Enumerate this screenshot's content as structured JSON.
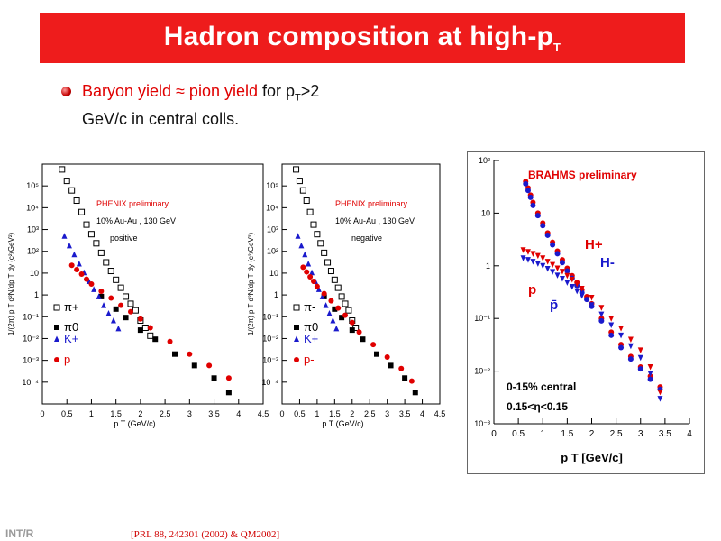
{
  "slide": {
    "title_main": "Hadron composition at high-p",
    "title_sub": "T",
    "bullet": {
      "red_part": "Baryon yield ≈ pion yield",
      "for_pre": " for p",
      "for_sub": "T",
      "for_post": ">2",
      "line2": "GeV/c in central colls."
    },
    "footer_left": "INT/R",
    "footer_ref": "[PRL 88, 242301 (2002) & QM2002]"
  },
  "chart_data": [
    {
      "type": "scatter",
      "id": "phenix-positive",
      "ylabel": "1/(2π) p T d²N/dp T dy (c²/GeV²)",
      "xlabel": "p T (GeV/c)",
      "yscale": "log",
      "xlim": [
        0,
        4.5
      ],
      "ylim": [
        0.0001,
        1000000
      ],
      "xticks": [
        0,
        0.5,
        1,
        1.5,
        2,
        2.5,
        3,
        3.5,
        4,
        4.5
      ],
      "xtick_labels": [
        "0",
        "0.5",
        "1",
        "1.5",
        "2",
        "2.5",
        "3",
        "3.5",
        "4",
        "4.5"
      ],
      "ytick_labels": [
        "10⁵",
        "10⁴",
        "10³",
        "10²",
        "10",
        "1",
        "10⁻¹",
        "10⁻²",
        "10⁻³",
        "10⁻⁴"
      ],
      "annotations": [
        "PHENIX preliminary",
        "10% Au-Au , 130 GeV",
        "positive"
      ],
      "legend": [
        "π+",
        "π0",
        "K+",
        "p"
      ],
      "series": [
        {
          "name": "π+",
          "marker": "open-square",
          "color": "#000000",
          "x": [
            0.3,
            0.4,
            0.5,
            0.6,
            0.7,
            0.8,
            0.9,
            1.0,
            1.1,
            1.2,
            1.3,
            1.4,
            1.5,
            1.6,
            1.7,
            1.8,
            1.9,
            2.0,
            2.1,
            2.2
          ],
          "y": [
            2000000,
            600000,
            200000,
            80000,
            30000,
            10000,
            3000,
            1200,
            500,
            200,
            80,
            35,
            15,
            7,
            3,
            1.5,
            0.8,
            0.3,
            0.15,
            0.07
          ]
        },
        {
          "name": "π0",
          "marker": "filled-square",
          "color": "#000000",
          "x": [
            1.2,
            1.5,
            1.7,
            2.0,
            2.3,
            2.7,
            3.1,
            3.5,
            3.8
          ],
          "y": [
            3,
            0.9,
            0.4,
            0.12,
            0.05,
            0.012,
            0.004,
            0.0012,
            0.0003
          ]
        },
        {
          "name": "K+",
          "marker": "filled-triangle",
          "color": "#1a1acc",
          "x": [
            0.45,
            0.55,
            0.65,
            0.75,
            0.85,
            0.95,
            1.05,
            1.15,
            1.25,
            1.35,
            1.45,
            1.55
          ],
          "y": [
            1000,
            400,
            170,
            70,
            30,
            13,
            6,
            3,
            1.3,
            0.6,
            0.3,
            0.14
          ]
        },
        {
          "name": "p",
          "marker": "filled-circle",
          "color": "#e00000",
          "x": [
            0.6,
            0.7,
            0.8,
            0.9,
            1.0,
            1.2,
            1.4,
            1.6,
            1.8,
            2.0,
            2.2,
            2.6,
            3.0,
            3.4,
            3.8
          ],
          "y": [
            60,
            40,
            26,
            16,
            10,
            5,
            2.6,
            1.3,
            0.7,
            0.35,
            0.15,
            0.04,
            0.012,
            0.004,
            0.0012
          ]
        }
      ]
    },
    {
      "type": "scatter",
      "id": "phenix-negative",
      "ylabel": "1/(2π) p T d²N/dp T dy (c²/GeV²)",
      "xlabel": "p T (GeV/c)",
      "yscale": "log",
      "xlim": [
        0,
        4.5
      ],
      "ylim": [
        0.0001,
        1000000
      ],
      "xticks": [
        0,
        0.5,
        1,
        1.5,
        2,
        2.5,
        3,
        3.5,
        4,
        4.5
      ],
      "xtick_labels": [
        "0",
        "0.5",
        "1",
        "1.5",
        "2",
        "2.5",
        "3",
        "3.5",
        "4",
        "4.5"
      ],
      "ytick_labels": [
        "10⁵",
        "10⁴",
        "10³",
        "10²",
        "10",
        "1",
        "10⁻¹",
        "10⁻²",
        "10⁻³",
        "10⁻⁴"
      ],
      "annotations": [
        "PHENIX preliminary",
        "10% Au-Au , 130 GeV",
        "negative"
      ],
      "legend": [
        "π-",
        "π0",
        "K+",
        "p-"
      ],
      "series": [
        {
          "name": "π-",
          "marker": "open-square",
          "color": "#000000",
          "x": [
            0.3,
            0.4,
            0.5,
            0.6,
            0.7,
            0.8,
            0.9,
            1.0,
            1.1,
            1.2,
            1.3,
            1.4,
            1.5,
            1.6,
            1.7,
            1.8,
            1.9,
            2.0,
            2.1
          ],
          "y": [
            2000000,
            600000,
            200000,
            80000,
            30000,
            10000,
            3000,
            1200,
            500,
            200,
            80,
            35,
            15,
            7,
            3,
            1.5,
            0.8,
            0.3,
            0.15
          ]
        },
        {
          "name": "π0",
          "marker": "filled-square",
          "color": "#000000",
          "x": [
            1.2,
            1.5,
            1.7,
            2.0,
            2.3,
            2.7,
            3.1,
            3.5,
            3.8
          ],
          "y": [
            3,
            0.9,
            0.4,
            0.12,
            0.05,
            0.012,
            0.004,
            0.0012,
            0.0003
          ]
        },
        {
          "name": "K+",
          "marker": "filled-triangle",
          "color": "#1a1acc",
          "x": [
            0.45,
            0.55,
            0.65,
            0.75,
            0.85,
            0.95,
            1.05,
            1.15,
            1.25,
            1.35,
            1.45,
            1.55
          ],
          "y": [
            1000,
            400,
            170,
            70,
            30,
            13,
            6,
            3,
            1.3,
            0.6,
            0.3,
            0.14
          ]
        },
        {
          "name": "p-",
          "marker": "filled-circle",
          "color": "#e00000",
          "x": [
            0.6,
            0.7,
            0.8,
            0.9,
            1.0,
            1.2,
            1.4,
            1.6,
            1.8,
            2.0,
            2.2,
            2.6,
            3.0,
            3.4,
            3.7
          ],
          "y": [
            50,
            32,
            20,
            13,
            8,
            4,
            2,
            1,
            0.5,
            0.25,
            0.1,
            0.03,
            0.009,
            0.003,
            0.0009
          ]
        }
      ]
    },
    {
      "type": "scatter",
      "id": "brahms",
      "xlabel": "p T [GeV/c]",
      "yscale": "log",
      "xlim": [
        0,
        4
      ],
      "ylim": [
        0.001,
        100
      ],
      "xticks": [
        0,
        0.5,
        1,
        1.5,
        2,
        2.5,
        3,
        3.5,
        4
      ],
      "xtick_labels": [
        "0",
        "0.5",
        "1",
        "1.5",
        "2",
        "2.5",
        "3",
        "3.5",
        "4"
      ],
      "ytick_labels": [
        "10²",
        "10",
        "1",
        "10⁻¹",
        "10⁻²",
        "10⁻³"
      ],
      "annotations": [
        "BRAHMS preliminary",
        "0-15% central",
        "0.15<η<0.15",
        "H+",
        "H-",
        "p",
        "p̄"
      ],
      "series": [
        {
          "name": "H+",
          "marker": "filled-circle",
          "color": "#e00000",
          "x": [
            0.65,
            0.7,
            0.75,
            0.8,
            0.9,
            1.0,
            1.1,
            1.2,
            1.3,
            1.4,
            1.5,
            1.6,
            1.7,
            1.8,
            1.9,
            2.0,
            2.2,
            2.4,
            2.6,
            2.8,
            3.0,
            3.2,
            3.4
          ],
          "y": [
            40,
            30,
            22,
            16,
            10,
            6.5,
            4.2,
            2.8,
            1.9,
            1.3,
            0.9,
            0.65,
            0.48,
            0.35,
            0.26,
            0.19,
            0.1,
            0.055,
            0.032,
            0.019,
            0.012,
            0.008,
            0.005
          ]
        },
        {
          "name": "H-",
          "marker": "filled-circle",
          "color": "#1a1acc",
          "x": [
            0.65,
            0.7,
            0.75,
            0.8,
            0.9,
            1.0,
            1.1,
            1.2,
            1.3,
            1.4,
            1.5,
            1.6,
            1.7,
            1.8,
            1.9,
            2.0,
            2.2,
            2.4,
            2.6,
            2.8,
            3.0,
            3.2,
            3.4
          ],
          "y": [
            36,
            27,
            20,
            14,
            9,
            5.8,
            3.8,
            2.5,
            1.7,
            1.15,
            0.8,
            0.58,
            0.42,
            0.31,
            0.23,
            0.17,
            0.09,
            0.048,
            0.028,
            0.017,
            0.011,
            0.007,
            0.0045
          ]
        },
        {
          "name": "p",
          "marker": "filled-triangle-down",
          "color": "#e00000",
          "x": [
            0.6,
            0.7,
            0.8,
            0.9,
            1.0,
            1.1,
            1.2,
            1.3,
            1.4,
            1.5,
            1.6,
            1.7,
            1.8,
            2.0,
            2.2,
            2.4,
            2.6,
            2.8,
            3.0,
            3.2,
            3.4
          ],
          "y": [
            2.0,
            1.85,
            1.7,
            1.55,
            1.4,
            1.2,
            1.05,
            0.9,
            0.78,
            0.65,
            0.55,
            0.45,
            0.37,
            0.25,
            0.16,
            0.1,
            0.065,
            0.04,
            0.025,
            0.012,
            0.004
          ]
        },
        {
          "name": "p̄",
          "marker": "filled-triangle-down",
          "color": "#1a1acc",
          "x": [
            0.6,
            0.7,
            0.8,
            0.9,
            1.0,
            1.1,
            1.2,
            1.3,
            1.4,
            1.5,
            1.6,
            1.7,
            1.8,
            2.0,
            2.2,
            2.4,
            2.6,
            2.8,
            3.0,
            3.2,
            3.4
          ],
          "y": [
            1.4,
            1.3,
            1.2,
            1.1,
            1.0,
            0.88,
            0.77,
            0.66,
            0.57,
            0.48,
            0.4,
            0.33,
            0.27,
            0.18,
            0.12,
            0.075,
            0.048,
            0.03,
            0.018,
            0.009,
            0.003
          ]
        }
      ]
    }
  ]
}
